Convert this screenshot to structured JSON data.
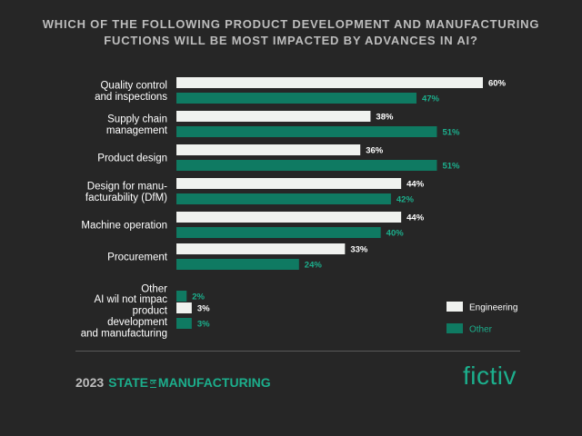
{
  "chart_data": {
    "type": "bar",
    "orientation": "horizontal",
    "title_lines": [
      "WHICH OF THE FOLLOWING PRODUCT DEVELOPMENT AND MANUFACTURING",
      "FUCTIONS WILL BE MOST IMPACTED BY ADVANCES IN AI?"
    ],
    "categories": [
      [
        "Quality control",
        "and inspections"
      ],
      [
        "Supply chain",
        "management"
      ],
      [
        "Product design"
      ],
      [
        "Design for manu-",
        "facturability (DfM)"
      ],
      [
        "Machine operation"
      ],
      [
        "Procurement"
      ],
      [
        "Other"
      ],
      [
        "AI wil not impac",
        "product",
        "development",
        "and manufacturing"
      ]
    ],
    "series": [
      {
        "name": "Engineering",
        "color": "#f0f2ef",
        "label_color": "#ffffff",
        "values": [
          60,
          38,
          36,
          44,
          44,
          33,
          null,
          3
        ],
        "labels": [
          "60%",
          "38%",
          "36%",
          "44%",
          "44%",
          "33%",
          "",
          "3%"
        ]
      },
      {
        "name": "Other",
        "color": "#0f7a62",
        "label_color": "#1cae8c",
        "values": [
          47,
          51,
          51,
          42,
          40,
          24,
          2,
          3
        ],
        "labels": [
          "47%",
          "51%",
          "51%",
          "42%",
          "40%",
          "24%",
          "2%",
          "3%"
        ]
      }
    ],
    "xlim": [
      0,
      60
    ],
    "grid": false,
    "legend_position": "bottom-right"
  },
  "footer": {
    "year": "2023",
    "state": "STATE",
    "of": "OF",
    "manufacturing": "MANUFACTURING",
    "logo": "fictiv"
  }
}
